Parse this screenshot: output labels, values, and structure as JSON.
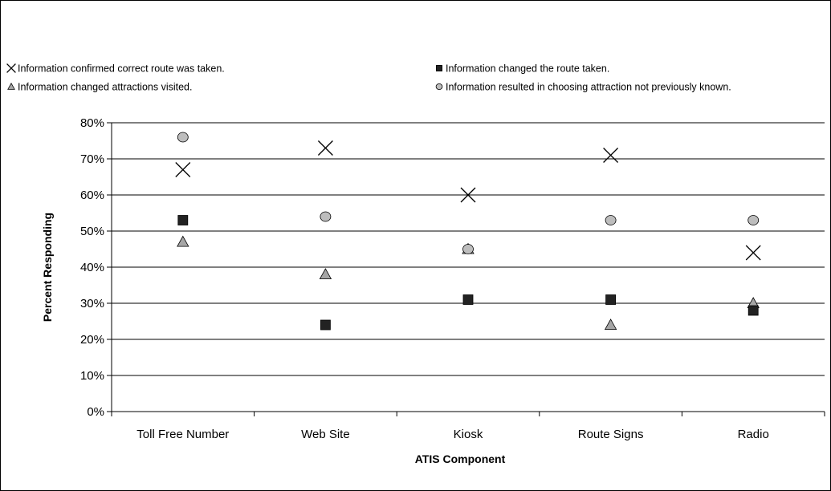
{
  "chart_data": {
    "type": "scatter",
    "title": "",
    "xlabel": "ATIS Component",
    "ylabel": "Percent Responding",
    "categories": [
      "Toll Free Number",
      "Web Site",
      "Kiosk",
      "Route Signs",
      "Radio"
    ],
    "ylim": [
      0,
      80
    ],
    "yticks": [
      "0%",
      "10%",
      "20%",
      "30%",
      "40%",
      "50%",
      "60%",
      "70%",
      "80%"
    ],
    "unit": "%",
    "grid": "horizontal",
    "legend_position": "top",
    "series": [
      {
        "name": "Information confirmed correct route was taken.",
        "marker": "x",
        "color": "#000000",
        "values": [
          67,
          73,
          60,
          71,
          44
        ]
      },
      {
        "name": "Information changed the route taken.",
        "marker": "square",
        "color": "#222222",
        "values": [
          53,
          24,
          31,
          31,
          28
        ]
      },
      {
        "name": "Information changed attractions visited.",
        "marker": "triangle",
        "color": "#a6a6a6",
        "values": [
          47,
          38,
          45,
          24,
          30
        ]
      },
      {
        "name": "Information resulted in choosing attraction not previously known.",
        "marker": "circle",
        "color": "#bdbdbd",
        "values": [
          76,
          54,
          45,
          53,
          53
        ]
      }
    ]
  }
}
